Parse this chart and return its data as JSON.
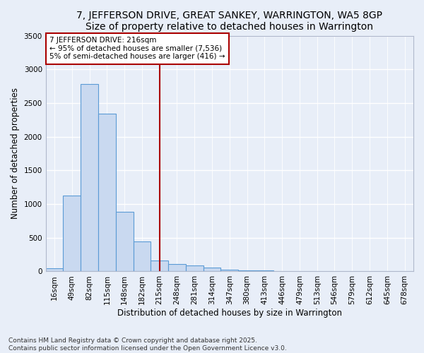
{
  "title": "7, JEFFERSON DRIVE, GREAT SANKEY, WARRINGTON, WA5 8GP",
  "subtitle": "Size of property relative to detached houses in Warrington",
  "xlabel": "Distribution of detached houses by size in Warrington",
  "ylabel": "Number of detached properties",
  "categories": [
    "16sqm",
    "49sqm",
    "82sqm",
    "115sqm",
    "148sqm",
    "182sqm",
    "215sqm",
    "248sqm",
    "281sqm",
    "314sqm",
    "347sqm",
    "380sqm",
    "413sqm",
    "446sqm",
    "479sqm",
    "513sqm",
    "546sqm",
    "579sqm",
    "612sqm",
    "645sqm",
    "678sqm"
  ],
  "values": [
    50,
    1130,
    2780,
    2340,
    890,
    440,
    165,
    105,
    85,
    55,
    25,
    20,
    15,
    8,
    5,
    3,
    2,
    2,
    1,
    1,
    1
  ],
  "bar_color": "#c9d9f0",
  "bar_edge_color": "#5b9bd5",
  "background_color": "#e8eef8",
  "grid_color": "#ffffff",
  "vline_x": 6,
  "vline_color": "#aa0000",
  "annotation_line1": "7 JEFFERSON DRIVE: 216sqm",
  "annotation_line2": "← 95% of detached houses are smaller (7,536)",
  "annotation_line3": "5% of semi-detached houses are larger (416) →",
  "annotation_box_color": "#ffffff",
  "annotation_box_edge_color": "#aa0000",
  "ylim": [
    0,
    3500
  ],
  "yticks": [
    0,
    500,
    1000,
    1500,
    2000,
    2500,
    3000,
    3500
  ],
  "footer_line1": "Contains HM Land Registry data © Crown copyright and database right 2025.",
  "footer_line2": "Contains public sector information licensed under the Open Government Licence v3.0.",
  "title_fontsize": 10,
  "subtitle_fontsize": 9.5,
  "axis_label_fontsize": 8.5,
  "tick_fontsize": 7.5,
  "annotation_fontsize": 7.5,
  "footer_fontsize": 6.5
}
